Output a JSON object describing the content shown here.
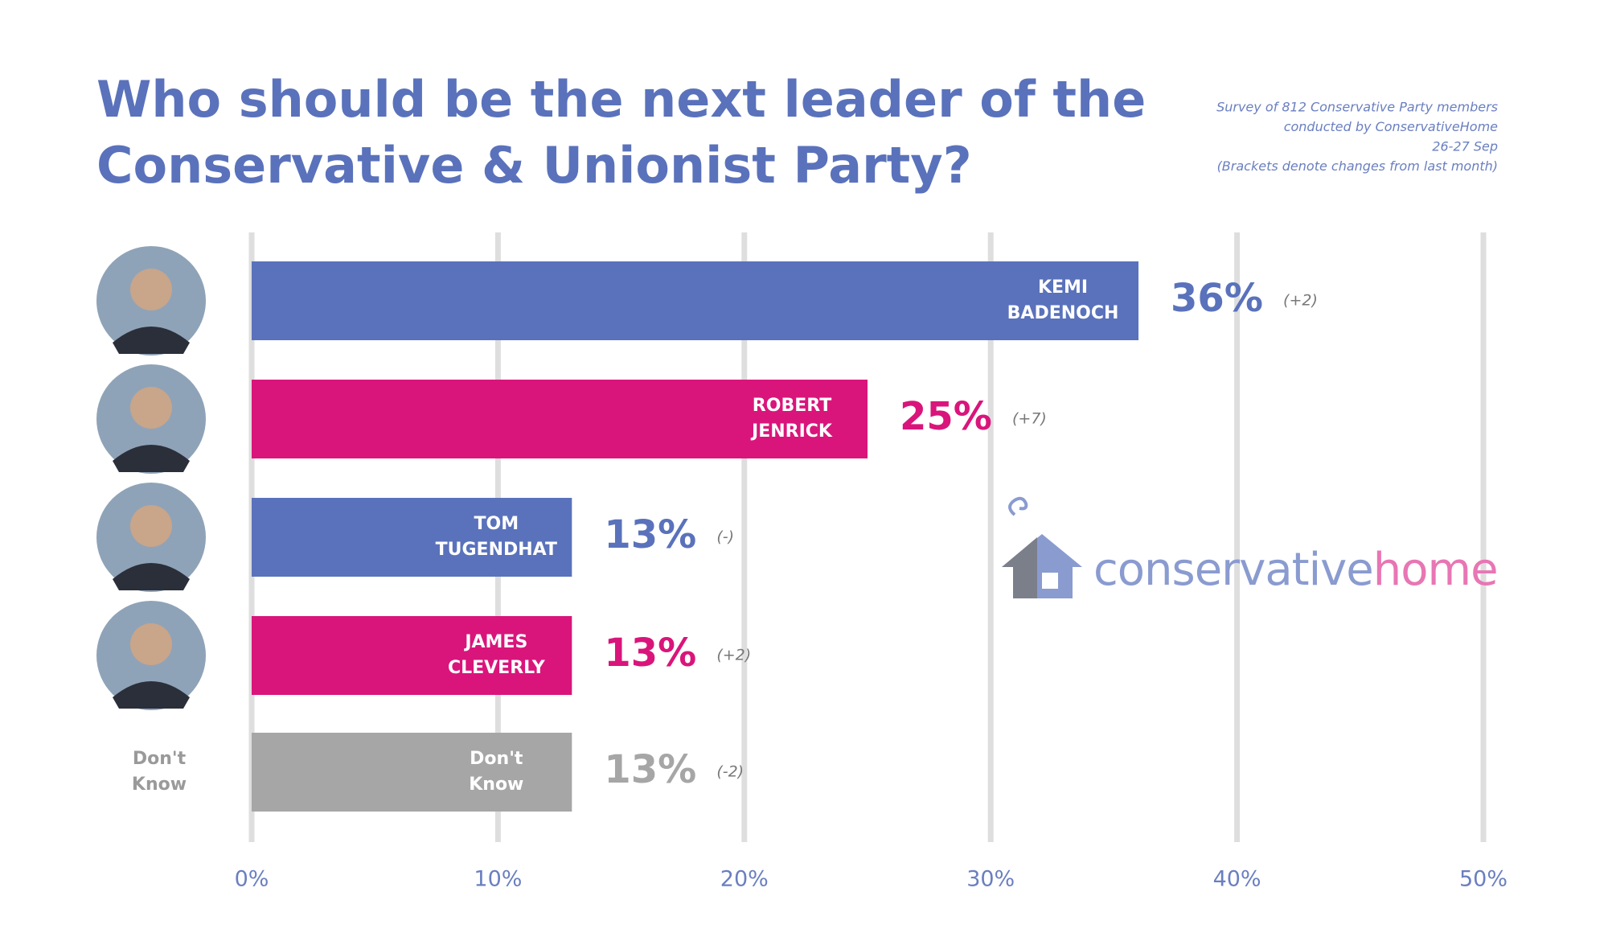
{
  "chart_data": {
    "type": "barh",
    "title_lines": [
      "Who should be the next leader of the",
      "Conservative & Unionist Party?"
    ],
    "note_lines": [
      "Survey of 812 Conservative Party members",
      "conducted by ConservativeHome",
      "26-27 Sep",
      "(Brackets denote changes from last month)"
    ],
    "categories": [
      "KEMI BADENOCH",
      "ROBERT JENRICK",
      "TOM TUGENDHAT",
      "JAMES CLEVERLY",
      "Don't Know"
    ],
    "values": [
      36,
      25,
      13,
      13,
      13
    ],
    "value_labels": [
      "36%",
      "25%",
      "13%",
      "13%",
      "13%"
    ],
    "changes": [
      "(+2)",
      "(+7)",
      "(-)",
      "(+2)",
      "(-2)"
    ],
    "colors": [
      "#5a72bb",
      "#d9157b",
      "#5a72bb",
      "#d9157b",
      "#a6a6a6"
    ],
    "xlim": [
      0,
      50
    ],
    "xticks": [
      {
        "value": 0,
        "label": "0%"
      },
      {
        "value": 10,
        "label": "10%"
      },
      {
        "value": 20,
        "label": "20%"
      },
      {
        "value": 30,
        "label": "30%"
      },
      {
        "value": 40,
        "label": "40%"
      },
      {
        "value": 50,
        "label": "50%"
      }
    ],
    "grid": true,
    "logo": {
      "left": "conservative",
      "right": "home"
    }
  }
}
